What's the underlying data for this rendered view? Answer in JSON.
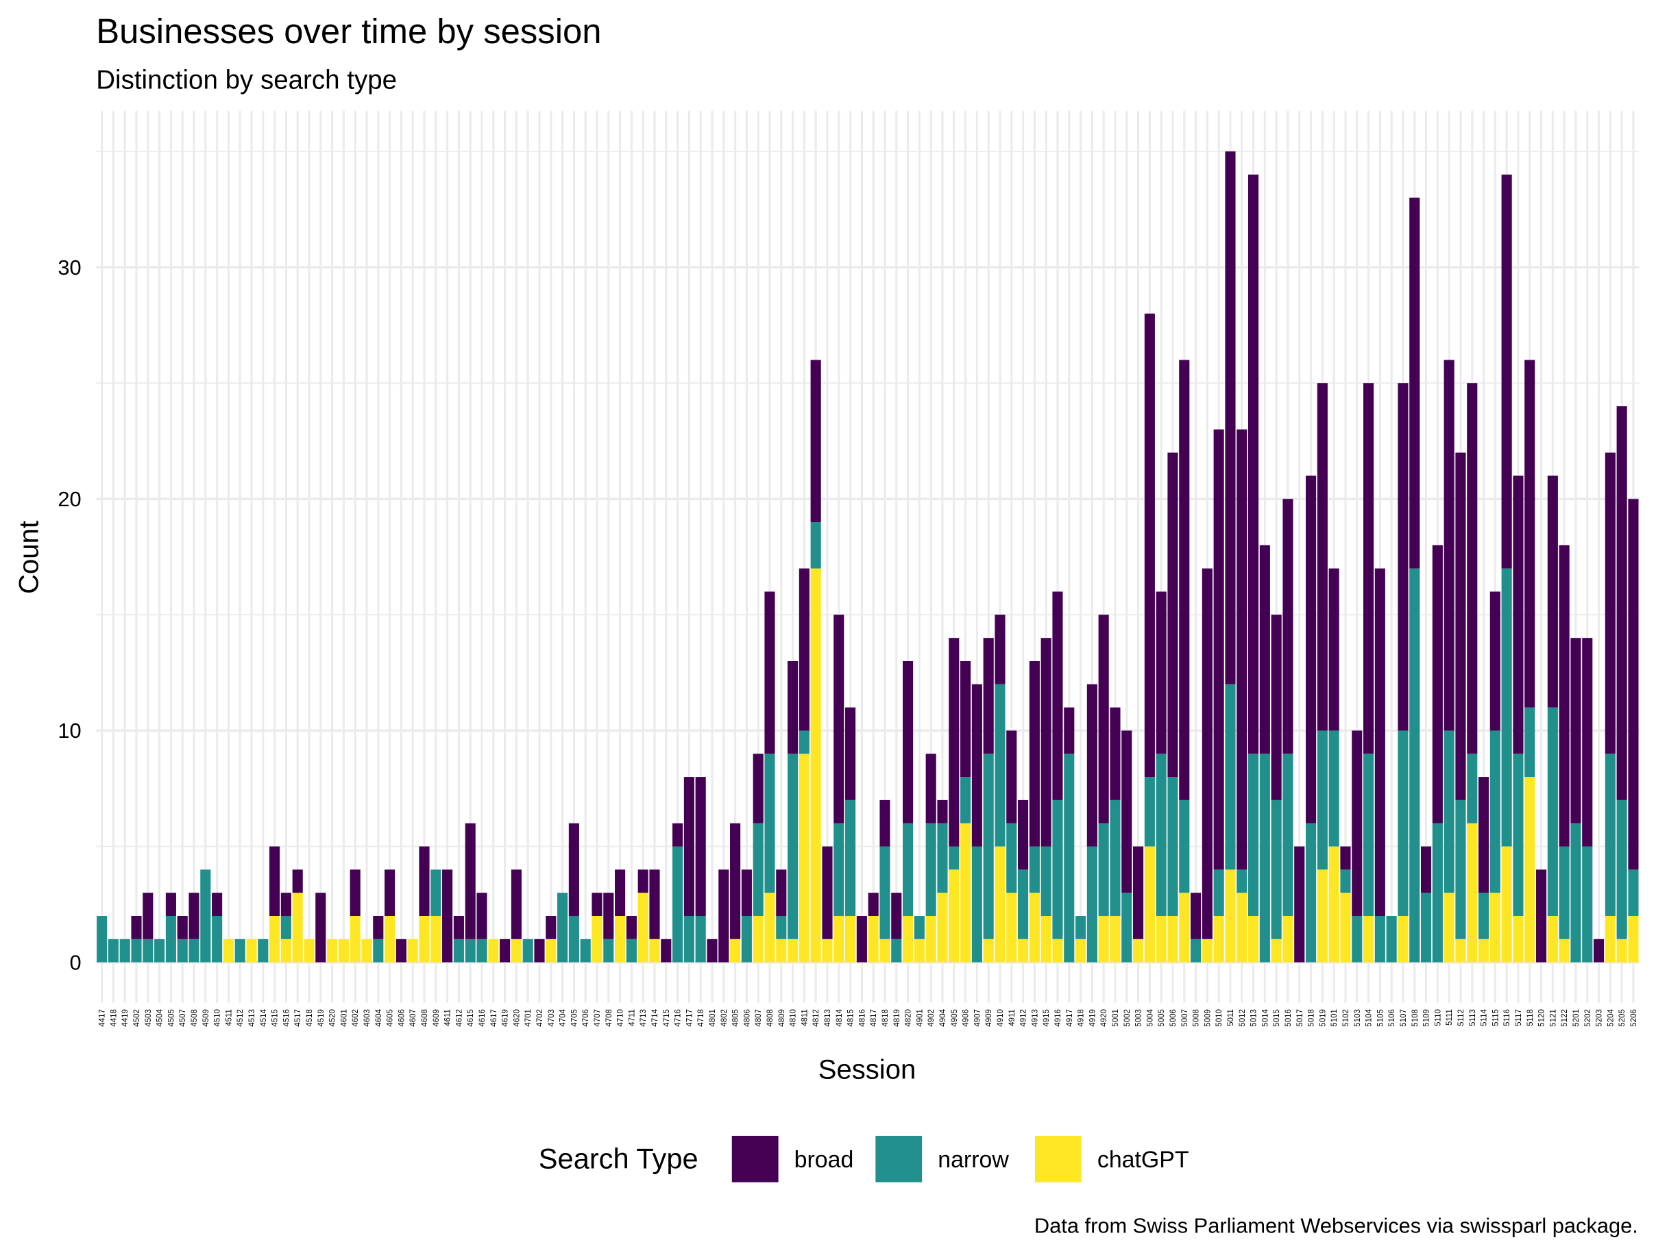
{
  "chart_data": {
    "type": "stacked_bar",
    "title": "Businesses over time by session",
    "subtitle": "Distinction by search type",
    "x_label": "Session",
    "y_label": "Count",
    "legend_title": "Search Type",
    "caption": "Data from Swiss Parliament Webservices via swissparl package.",
    "categories": [
      "4417",
      "4418",
      "4419",
      "4502",
      "4503",
      "4504",
      "4505",
      "4507",
      "4508",
      "4509",
      "4510",
      "4511",
      "4512",
      "4513",
      "4514",
      "4515",
      "4516",
      "4517",
      "4518",
      "4519",
      "4520",
      "4601",
      "4602",
      "4603",
      "4604",
      "4605",
      "4606",
      "4607",
      "4608",
      "4609",
      "4611",
      "4612",
      "4615",
      "4616",
      "4617",
      "4619",
      "4620",
      "4701",
      "4702",
      "4703",
      "4704",
      "4705",
      "4706",
      "4707",
      "4708",
      "4710",
      "4711",
      "4713",
      "4714",
      "4715",
      "4716",
      "4717",
      "4718",
      "4801",
      "4802",
      "4805",
      "4806",
      "4807",
      "4808",
      "4809",
      "4810",
      "4811",
      "4812",
      "4813",
      "4814",
      "4815",
      "4816",
      "4817",
      "4818",
      "4819",
      "4820",
      "4901",
      "4902",
      "4904",
      "4905",
      "4906",
      "4907",
      "4909",
      "4910",
      "4911",
      "4912",
      "4913",
      "4915",
      "4916",
      "4917",
      "4918",
      "4919",
      "4920",
      "5001",
      "5002",
      "5003",
      "5004",
      "5005",
      "5006",
      "5007",
      "5008",
      "5009",
      "5010",
      "5011",
      "5012",
      "5013",
      "5014",
      "5015",
      "5016",
      "5017",
      "5018",
      "5019",
      "5101",
      "5102",
      "5103",
      "5104",
      "5105",
      "5106",
      "5107",
      "5108",
      "5109",
      "5110",
      "5111",
      "5112",
      "5113",
      "5114",
      "5115",
      "5116",
      "5117",
      "5118",
      "5120",
      "5121",
      "5122",
      "5201",
      "5202",
      "5203",
      "5204",
      "5205",
      "5206"
    ],
    "series": [
      {
        "name": "broad",
        "color": "#440154",
        "values": [
          0,
          0,
          0,
          1,
          2,
          0,
          1,
          1,
          2,
          0,
          1,
          0,
          0,
          0,
          0,
          3,
          1,
          1,
          0,
          3,
          0,
          0,
          2,
          0,
          1,
          2,
          1,
          0,
          3,
          0,
          4,
          1,
          5,
          2,
          0,
          1,
          3,
          0,
          1,
          1,
          0,
          4,
          0,
          1,
          2,
          2,
          1,
          1,
          3,
          1,
          1,
          6,
          6,
          1,
          4,
          5,
          2,
          3,
          7,
          2,
          4,
          7,
          7,
          4,
          9,
          4,
          2,
          1,
          2,
          2,
          7,
          0,
          3,
          1,
          9,
          5,
          7,
          5,
          3,
          4,
          3,
          8,
          9,
          9,
          2,
          0,
          7,
          9,
          4,
          7,
          4,
          20,
          7,
          14,
          19,
          2,
          16,
          19,
          23,
          19,
          25,
          9,
          8,
          11,
          5,
          15,
          15,
          7,
          1,
          8,
          16,
          15,
          0,
          15,
          16,
          2,
          12,
          16,
          15,
          16,
          5,
          6,
          17,
          12,
          15,
          4,
          10,
          13,
          8,
          9,
          1,
          13,
          17,
          16
        ]
      },
      {
        "name": "narrow",
        "color": "#21908C",
        "values": [
          2,
          1,
          1,
          1,
          1,
          1,
          2,
          1,
          1,
          4,
          2,
          0,
          1,
          0,
          1,
          0,
          1,
          0,
          0,
          0,
          0,
          0,
          0,
          0,
          1,
          0,
          0,
          0,
          0,
          2,
          0,
          1,
          1,
          1,
          0,
          0,
          0,
          1,
          0,
          0,
          3,
          2,
          1,
          0,
          1,
          0,
          1,
          0,
          0,
          0,
          5,
          2,
          2,
          0,
          0,
          0,
          2,
          4,
          6,
          1,
          8,
          1,
          2,
          0,
          4,
          5,
          0,
          0,
          4,
          1,
          4,
          1,
          4,
          3,
          1,
          2,
          5,
          8,
          7,
          3,
          3,
          2,
          3,
          6,
          9,
          1,
          5,
          4,
          5,
          3,
          0,
          3,
          7,
          6,
          4,
          1,
          0,
          2,
          8,
          1,
          7,
          9,
          6,
          7,
          0,
          6,
          6,
          5,
          1,
          2,
          7,
          2,
          2,
          8,
          17,
          3,
          6,
          7,
          6,
          3,
          2,
          7,
          12,
          7,
          3,
          0,
          9,
          4,
          6,
          5,
          0,
          7,
          6,
          2
        ]
      },
      {
        "name": "chatGPT",
        "color": "#FDE725",
        "values": [
          0,
          0,
          0,
          0,
          0,
          0,
          0,
          0,
          0,
          0,
          0,
          1,
          0,
          1,
          0,
          2,
          1,
          3,
          1,
          0,
          1,
          1,
          2,
          1,
          0,
          2,
          0,
          1,
          2,
          2,
          0,
          0,
          0,
          0,
          1,
          0,
          1,
          0,
          0,
          1,
          0,
          0,
          0,
          2,
          0,
          2,
          0,
          3,
          1,
          0,
          0,
          0,
          0,
          0,
          0,
          1,
          0,
          2,
          3,
          1,
          1,
          9,
          17,
          1,
          2,
          2,
          0,
          2,
          1,
          0,
          2,
          1,
          2,
          3,
          4,
          6,
          0,
          1,
          5,
          3,
          1,
          3,
          2,
          1,
          0,
          1,
          0,
          2,
          2,
          0,
          1,
          5,
          2,
          2,
          3,
          0,
          1,
          2,
          4,
          3,
          2,
          0,
          1,
          2,
          0,
          0,
          4,
          5,
          3,
          0,
          2,
          0,
          0,
          2,
          0,
          0,
          0,
          3,
          1,
          6,
          1,
          3,
          5,
          2,
          8,
          0,
          2,
          1,
          0,
          0,
          0,
          2,
          1,
          2
        ]
      }
    ],
    "ylim": [
      -1.75,
      36.75
    ],
    "yticks": [
      0,
      10,
      20,
      30
    ],
    "minor_yticks": [
      5,
      15,
      25,
      35
    ],
    "grid": true,
    "legend": "bottom"
  }
}
